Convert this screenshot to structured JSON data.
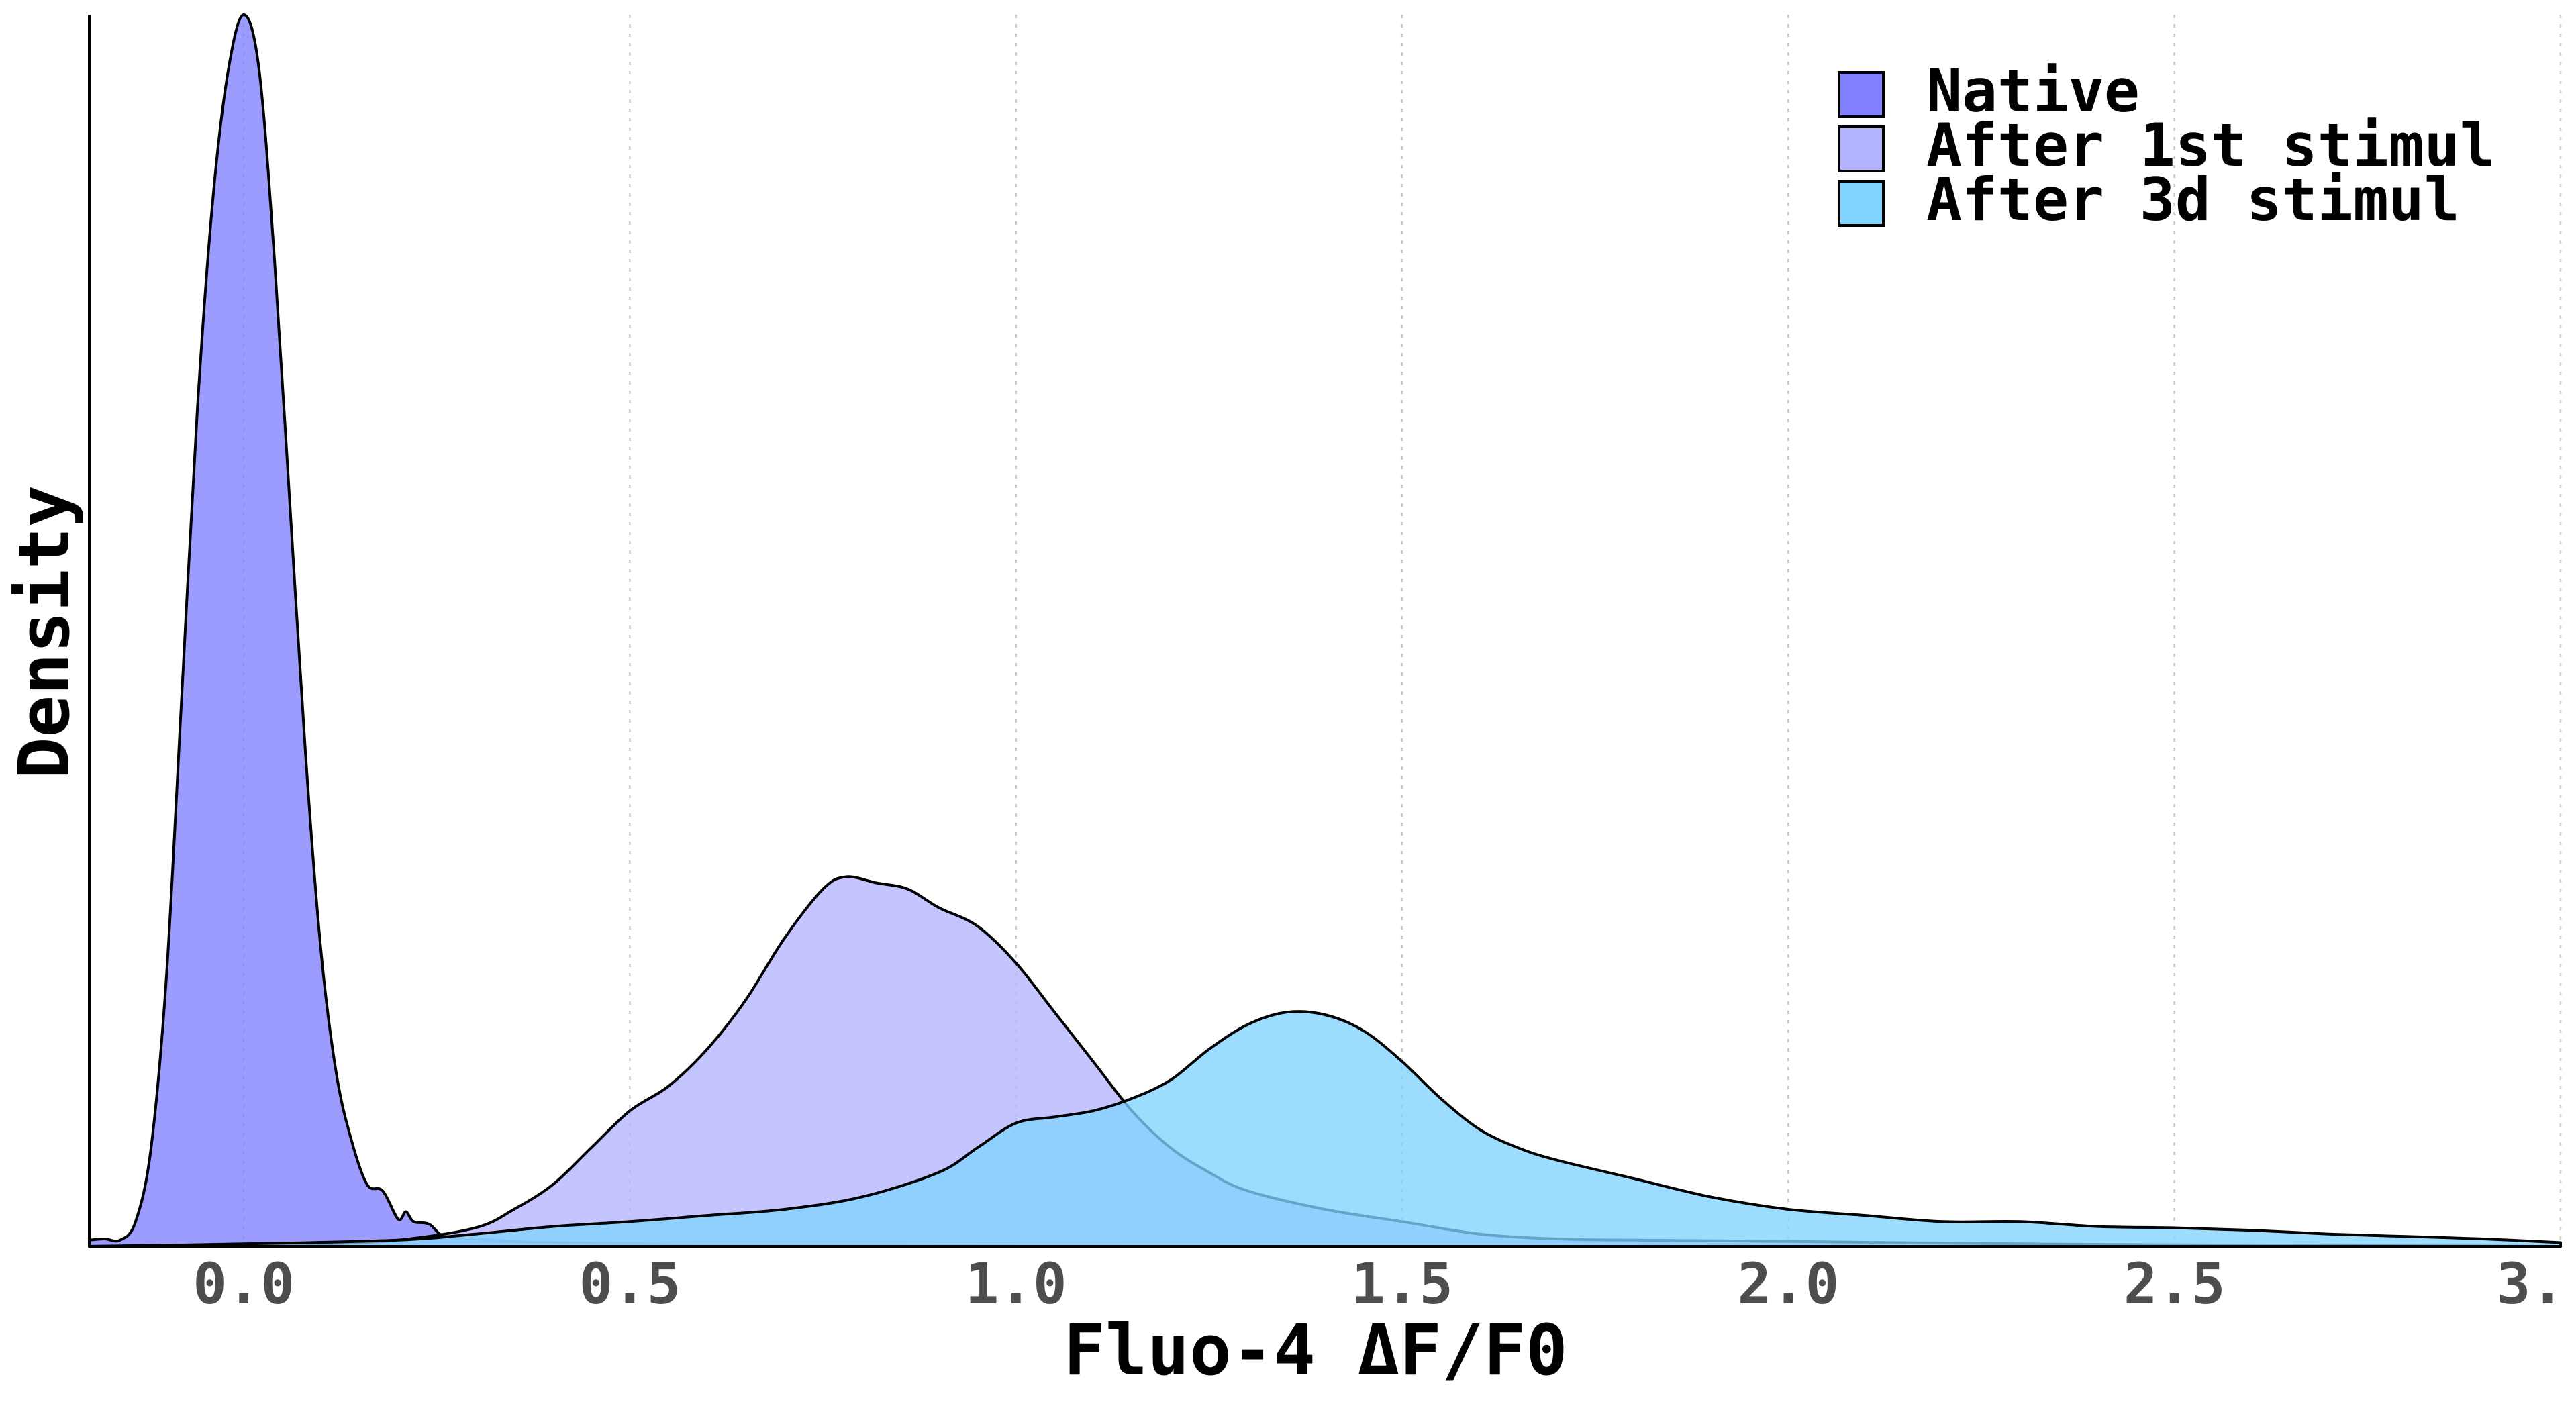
{
  "chart_data": {
    "type": "area",
    "subtype": "density",
    "title": "",
    "xlabel": "Fluo-4 ΔF/F0",
    "ylabel": "Density",
    "xlim": [
      -0.2,
      3.0
    ],
    "ylim": [
      0,
      1.0
    ],
    "x_ticks": [
      "0.0",
      "0.5",
      "1.0",
      "1.5",
      "2.0",
      "2.5",
      "3."
    ],
    "x_tick_values": [
      0.0,
      0.5,
      1.0,
      1.5,
      2.0,
      2.5,
      3.0
    ],
    "grid": "vertical dotted major lines",
    "legend_position": "top-right",
    "series": [
      {
        "name": "Native",
        "color": "#8080ff",
        "points": [
          [
            -0.2,
            0.005
          ],
          [
            -0.18,
            0.006
          ],
          [
            -0.16,
            0.005
          ],
          [
            -0.14,
            0.02
          ],
          [
            -0.12,
            0.08
          ],
          [
            -0.1,
            0.22
          ],
          [
            -0.08,
            0.45
          ],
          [
            -0.06,
            0.68
          ],
          [
            -0.04,
            0.85
          ],
          [
            -0.02,
            0.955
          ],
          [
            0.0,
            1.0
          ],
          [
            0.02,
            0.955
          ],
          [
            0.04,
            0.8
          ],
          [
            0.06,
            0.6
          ],
          [
            0.08,
            0.4
          ],
          [
            0.1,
            0.24
          ],
          [
            0.12,
            0.14
          ],
          [
            0.14,
            0.085
          ],
          [
            0.16,
            0.05
          ],
          [
            0.18,
            0.045
          ],
          [
            0.2,
            0.022
          ],
          [
            0.21,
            0.028
          ],
          [
            0.22,
            0.02
          ],
          [
            0.24,
            0.018
          ],
          [
            0.26,
            0.008
          ],
          [
            0.3,
            0.006
          ],
          [
            0.35,
            0.004
          ],
          [
            0.4,
            0.003
          ],
          [
            0.5,
            0.002
          ],
          [
            0.6,
            0.001
          ],
          [
            0.8,
            0.001
          ],
          [
            1.0,
            0.0005
          ],
          [
            1.5,
            0.0002
          ],
          [
            3.0,
            0.0
          ]
        ]
      },
      {
        "name": "After 1st stimul",
        "color": "#b3b3ff",
        "points": [
          [
            -0.2,
            0.0
          ],
          [
            0.0,
            0.001
          ],
          [
            0.1,
            0.002
          ],
          [
            0.2,
            0.005
          ],
          [
            0.3,
            0.015
          ],
          [
            0.35,
            0.03
          ],
          [
            0.4,
            0.05
          ],
          [
            0.45,
            0.08
          ],
          [
            0.5,
            0.11
          ],
          [
            0.55,
            0.13
          ],
          [
            0.6,
            0.16
          ],
          [
            0.65,
            0.2
          ],
          [
            0.7,
            0.25
          ],
          [
            0.75,
            0.29
          ],
          [
            0.78,
            0.3
          ],
          [
            0.82,
            0.295
          ],
          [
            0.86,
            0.29
          ],
          [
            0.9,
            0.275
          ],
          [
            0.95,
            0.26
          ],
          [
            1.0,
            0.23
          ],
          [
            1.05,
            0.19
          ],
          [
            1.1,
            0.15
          ],
          [
            1.15,
            0.11
          ],
          [
            1.2,
            0.08
          ],
          [
            1.25,
            0.06
          ],
          [
            1.3,
            0.045
          ],
          [
            1.4,
            0.03
          ],
          [
            1.5,
            0.02
          ],
          [
            1.6,
            0.01
          ],
          [
            1.7,
            0.006
          ],
          [
            1.8,
            0.005
          ],
          [
            2.0,
            0.004
          ],
          [
            2.3,
            0.002
          ],
          [
            2.6,
            0.001
          ],
          [
            3.0,
            0.0
          ]
        ]
      },
      {
        "name": "After 3d stimul",
        "color": "#80d4ff",
        "points": [
          [
            -0.2,
            0.0
          ],
          [
            0.0,
            0.002
          ],
          [
            0.2,
            0.005
          ],
          [
            0.3,
            0.01
          ],
          [
            0.4,
            0.016
          ],
          [
            0.5,
            0.02
          ],
          [
            0.6,
            0.025
          ],
          [
            0.7,
            0.03
          ],
          [
            0.8,
            0.04
          ],
          [
            0.9,
            0.06
          ],
          [
            0.95,
            0.08
          ],
          [
            1.0,
            0.1
          ],
          [
            1.05,
            0.105
          ],
          [
            1.1,
            0.11
          ],
          [
            1.15,
            0.12
          ],
          [
            1.2,
            0.135
          ],
          [
            1.25,
            0.16
          ],
          [
            1.3,
            0.18
          ],
          [
            1.35,
            0.19
          ],
          [
            1.4,
            0.188
          ],
          [
            1.45,
            0.175
          ],
          [
            1.5,
            0.15
          ],
          [
            1.55,
            0.12
          ],
          [
            1.6,
            0.095
          ],
          [
            1.65,
            0.08
          ],
          [
            1.7,
            0.07
          ],
          [
            1.8,
            0.055
          ],
          [
            1.9,
            0.04
          ],
          [
            2.0,
            0.03
          ],
          [
            2.1,
            0.025
          ],
          [
            2.2,
            0.02
          ],
          [
            2.3,
            0.02
          ],
          [
            2.4,
            0.016
          ],
          [
            2.5,
            0.015
          ],
          [
            2.6,
            0.013
          ],
          [
            2.7,
            0.01
          ],
          [
            2.8,
            0.008
          ],
          [
            2.9,
            0.006
          ],
          [
            3.0,
            0.003
          ]
        ]
      }
    ]
  }
}
